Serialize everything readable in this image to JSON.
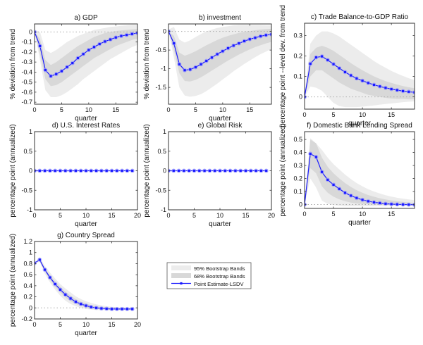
{
  "colors": {
    "band95": "#ececec",
    "band68": "#d8d8d8",
    "line": "#1a1aff",
    "marker_fill": "#1a1aff",
    "marker_halo": "#9a9aff",
    "axis": "#333333",
    "zero_line": "#aaaaaa"
  },
  "legend": {
    "items": [
      {
        "label": "95% Bootstrap Bands",
        "kind": "band95"
      },
      {
        "label": "68% Bootstrap Bands",
        "kind": "band68"
      },
      {
        "label": "Point Estimate-LSDV",
        "kind": "line"
      }
    ]
  },
  "chart_data": [
    {
      "id": "a",
      "type": "line",
      "title": "a) GDP",
      "xlabel": "quarter",
      "ylabel": "% deviation from trend",
      "xlim": [
        0,
        19
      ],
      "ylim": [
        -0.72,
        0.08
      ],
      "xticks": [
        0,
        5,
        10,
        15
      ],
      "yticks": [
        0,
        -0.1,
        -0.2,
        -0.3,
        -0.4,
        -0.5,
        -0.6,
        -0.7
      ],
      "ytick_labels": [
        "0",
        "-0.1",
        "-0.2",
        "-0.3",
        "-0.4",
        "-0.5",
        "-0.6",
        "-0.7"
      ],
      "x": [
        0,
        1,
        2,
        3,
        4,
        5,
        6,
        7,
        8,
        9,
        10,
        11,
        12,
        13,
        14,
        15,
        16,
        17,
        18,
        19
      ],
      "values": [
        0,
        -0.14,
        -0.38,
        -0.44,
        -0.42,
        -0.39,
        -0.35,
        -0.31,
        -0.26,
        -0.22,
        -0.18,
        -0.15,
        -0.12,
        -0.095,
        -0.075,
        -0.055,
        -0.04,
        -0.03,
        -0.02,
        -0.01
      ],
      "band68": {
        "lower": [
          0,
          -0.22,
          -0.47,
          -0.54,
          -0.53,
          -0.5,
          -0.46,
          -0.42,
          -0.38,
          -0.34,
          -0.3,
          -0.26,
          -0.23,
          -0.2,
          -0.17,
          -0.14,
          -0.12,
          -0.1,
          -0.08,
          -0.065
        ],
        "upper": [
          0,
          -0.07,
          -0.28,
          -0.33,
          -0.3,
          -0.26,
          -0.22,
          -0.18,
          -0.14,
          -0.11,
          -0.08,
          -0.05,
          -0.03,
          -0.01,
          0,
          0.01,
          0.015,
          0.02,
          0.025,
          0.03
        ]
      },
      "band95": {
        "lower": [
          0,
          -0.28,
          -0.58,
          -0.65,
          -0.65,
          -0.63,
          -0.6,
          -0.56,
          -0.52,
          -0.47,
          -0.43,
          -0.39,
          -0.35,
          -0.31,
          -0.27,
          -0.24,
          -0.21,
          -0.18,
          -0.15,
          -0.13
        ],
        "upper": [
          0.02,
          0.0,
          -0.18,
          -0.21,
          -0.18,
          -0.14,
          -0.1,
          -0.07,
          -0.04,
          -0.02,
          0.0,
          0.02,
          0.03,
          0.04,
          0.05,
          0.055,
          0.06,
          0.065,
          0.07,
          0.07
        ]
      },
      "zero_line": true
    },
    {
      "id": "b",
      "type": "line",
      "title": "b) investment",
      "xlabel": "quarter",
      "ylabel": "% deviation from trend",
      "xlim": [
        0,
        19
      ],
      "ylim": [
        -1.95,
        0.2
      ],
      "xticks": [
        0,
        5,
        10,
        15
      ],
      "yticks": [
        0,
        -0.5,
        -1,
        -1.5
      ],
      "ytick_labels": [
        "0",
        "-0.5",
        "-1",
        "-1.5"
      ],
      "x": [
        0,
        1,
        2,
        3,
        4,
        5,
        6,
        7,
        8,
        9,
        10,
        11,
        12,
        13,
        14,
        15,
        16,
        17,
        18,
        19
      ],
      "values": [
        0,
        -0.32,
        -0.88,
        -1.04,
        -1.02,
        -0.96,
        -0.88,
        -0.79,
        -0.7,
        -0.61,
        -0.53,
        -0.45,
        -0.38,
        -0.32,
        -0.26,
        -0.21,
        -0.17,
        -0.13,
        -0.1,
        -0.08
      ],
      "band68": {
        "lower": [
          0,
          -0.5,
          -1.12,
          -1.33,
          -1.34,
          -1.3,
          -1.23,
          -1.14,
          -1.05,
          -0.96,
          -0.87,
          -0.78,
          -0.7,
          -0.62,
          -0.55,
          -0.48,
          -0.42,
          -0.37,
          -0.32,
          -0.28
        ],
        "upper": [
          0,
          -0.12,
          -0.57,
          -0.65,
          -0.6,
          -0.53,
          -0.45,
          -0.37,
          -0.3,
          -0.23,
          -0.17,
          -0.12,
          -0.08,
          -0.04,
          -0.01,
          0.01,
          0.03,
          0.05,
          0.06,
          0.07
        ]
      },
      "band95": {
        "lower": [
          0,
          -0.7,
          -1.5,
          -1.72,
          -1.75,
          -1.73,
          -1.68,
          -1.6,
          -1.5,
          -1.4,
          -1.29,
          -1.18,
          -1.07,
          -0.97,
          -0.87,
          -0.78,
          -0.69,
          -0.61,
          -0.54,
          -0.47
        ],
        "upper": [
          0.05,
          0.12,
          -0.22,
          -0.3,
          -0.24,
          -0.15,
          -0.07,
          0.0,
          0.05,
          0.09,
          0.12,
          0.14,
          0.16,
          0.17,
          0.17,
          0.17,
          0.17,
          0.17,
          0.16,
          0.16
        ]
      },
      "zero_line": true
    },
    {
      "id": "c",
      "type": "line",
      "title": "c) Trade Balance-to-GDP Ratio",
      "xlabel": "quarter",
      "ylabel": "percentage point --level dev. from trend",
      "xlim": [
        0,
        19
      ],
      "ylim": [
        -0.06,
        0.36
      ],
      "xticks": [
        0,
        5,
        10,
        15
      ],
      "yticks": [
        0,
        0.1,
        0.2,
        0.3
      ],
      "ytick_labels": [
        "0",
        "0.1",
        "0.2",
        "0.3"
      ],
      "x": [
        0,
        1,
        2,
        3,
        4,
        5,
        6,
        7,
        8,
        9,
        10,
        11,
        12,
        13,
        14,
        15,
        16,
        17,
        18,
        19
      ],
      "values": [
        0,
        0.162,
        0.193,
        0.198,
        0.18,
        0.16,
        0.14,
        0.121,
        0.105,
        0.09,
        0.079,
        0.068,
        0.059,
        0.051,
        0.044,
        0.038,
        0.033,
        0.028,
        0.025,
        0.022
      ],
      "band68": {
        "lower": [
          0,
          0.1,
          0.13,
          0.13,
          0.11,
          0.09,
          0.07,
          0.055,
          0.04,
          0.03,
          0.02,
          0.01,
          0.005,
          0.0,
          -0.005,
          -0.008,
          -0.01,
          -0.01,
          -0.012,
          -0.012
        ],
        "upper": [
          0,
          0.21,
          0.24,
          0.25,
          0.24,
          0.225,
          0.205,
          0.185,
          0.165,
          0.147,
          0.13,
          0.115,
          0.1,
          0.088,
          0.077,
          0.068,
          0.06,
          0.053,
          0.047,
          0.042
        ]
      },
      "band95": {
        "lower": [
          0,
          0.05,
          0.045,
          0.03,
          0.0,
          -0.03,
          -0.045,
          -0.05,
          -0.05,
          -0.05,
          -0.048,
          -0.045,
          -0.042,
          -0.038,
          -0.035,
          -0.032,
          -0.029,
          -0.026,
          -0.024,
          -0.022
        ],
        "upper": [
          0,
          0.26,
          0.3,
          0.32,
          0.32,
          0.31,
          0.295,
          0.275,
          0.255,
          0.235,
          0.215,
          0.195,
          0.175,
          0.158,
          0.142,
          0.127,
          0.114,
          0.102,
          0.091,
          0.082
        ]
      },
      "zero_line": true
    },
    {
      "id": "d",
      "type": "line",
      "title": "d) U.S. Interest Rates",
      "xlabel": "quarter",
      "ylabel": "percentage point (annualized)",
      "xlim": [
        0,
        20
      ],
      "ylim": [
        -1,
        1
      ],
      "xticks": [
        0,
        5,
        10,
        15,
        20
      ],
      "yticks": [
        1,
        0.5,
        0,
        -0.5,
        -1
      ],
      "ytick_labels": [
        "1",
        "0.5",
        "0",
        "-0.5",
        "-1"
      ],
      "x": [
        0,
        1,
        2,
        3,
        4,
        5,
        6,
        7,
        8,
        9,
        10,
        11,
        12,
        13,
        14,
        15,
        16,
        17,
        18,
        19
      ],
      "values": [
        0,
        0,
        0,
        0,
        0,
        0,
        0,
        0,
        0,
        0,
        0,
        0,
        0,
        0,
        0,
        0,
        0,
        0,
        0,
        0
      ],
      "zero_line": false
    },
    {
      "id": "e",
      "type": "line",
      "title": "e) Global Risk",
      "xlabel": "quarter",
      "ylabel": "percentage point (annualized)",
      "xlim": [
        0,
        20
      ],
      "ylim": [
        -1,
        1
      ],
      "xticks": [
        0,
        5,
        10,
        15,
        20
      ],
      "yticks": [
        1,
        0.5,
        0,
        -0.5,
        -1
      ],
      "ytick_labels": [
        "1",
        "0.5",
        "0",
        "-0.5",
        "-1"
      ],
      "x": [
        0,
        1,
        2,
        3,
        4,
        5,
        6,
        7,
        8,
        9,
        10,
        11,
        12,
        13,
        14,
        15,
        16,
        17,
        18,
        19
      ],
      "values": [
        0,
        0,
        0,
        0,
        0,
        0,
        0,
        0,
        0,
        0,
        0,
        0,
        0,
        0,
        0,
        0,
        0,
        0,
        0,
        0
      ],
      "zero_line": false
    },
    {
      "id": "f",
      "type": "line",
      "title": "f) Domestic Bank Lending Spread",
      "xlabel": "quarter",
      "ylabel": "percentage point (annualized)",
      "xlim": [
        0,
        19
      ],
      "ylim": [
        -0.03,
        0.56
      ],
      "xticks": [
        0,
        5,
        10,
        15
      ],
      "yticks": [
        0,
        0.1,
        0.2,
        0.3,
        0.4,
        0.5
      ],
      "ytick_labels": [
        "0",
        "0.1",
        "0.2",
        "0.3",
        "0.4",
        "0.5"
      ],
      "x": [
        0,
        1,
        2,
        3,
        4,
        5,
        6,
        7,
        8,
        9,
        10,
        11,
        12,
        13,
        14,
        15,
        16,
        17,
        18,
        19
      ],
      "values": [
        0,
        0.39,
        0.365,
        0.25,
        0.19,
        0.152,
        0.12,
        0.09,
        0.068,
        0.05,
        0.036,
        0.025,
        0.017,
        0.011,
        0.006,
        0.003,
        0.001,
        0.0,
        -0.001,
        -0.002
      ],
      "band68": {
        "lower": [
          0,
          0.28,
          0.24,
          0.14,
          0.09,
          0.06,
          0.04,
          0.025,
          0.015,
          0.008,
          0.004,
          0.002,
          0.0,
          -0.002,
          -0.003,
          -0.004,
          -0.005,
          -0.005,
          -0.005,
          -0.005
        ],
        "upper": [
          0,
          0.5,
          0.47,
          0.36,
          0.29,
          0.24,
          0.2,
          0.165,
          0.135,
          0.11,
          0.09,
          0.073,
          0.06,
          0.048,
          0.039,
          0.031,
          0.025,
          0.02,
          0.016,
          0.013
        ]
      },
      "band95": {
        "lower": [
          0,
          0.2,
          0.13,
          0.03,
          0.005,
          -0.005,
          -0.01,
          -0.012,
          -0.013,
          -0.013,
          -0.013,
          -0.012,
          -0.012,
          -0.011,
          -0.011,
          -0.01,
          -0.01,
          -0.01,
          -0.01,
          -0.01
        ],
        "upper": [
          0,
          0.51,
          0.47,
          0.42,
          0.36,
          0.31,
          0.27,
          0.23,
          0.195,
          0.165,
          0.14,
          0.118,
          0.1,
          0.085,
          0.072,
          0.061,
          0.052,
          0.045,
          0.039,
          0.034
        ]
      },
      "zero_line": true
    },
    {
      "id": "g",
      "type": "line",
      "title": "g) Country Spread",
      "xlabel": "quarter",
      "ylabel": "percentage point (annualized)",
      "xlim": [
        0,
        20
      ],
      "ylim": [
        -0.2,
        1.2
      ],
      "xticks": [
        0,
        5,
        10,
        15,
        20
      ],
      "yticks": [
        1.2,
        1,
        0.8,
        0.6,
        0.4,
        0.2,
        0,
        -0.2
      ],
      "ytick_labels": [
        "1.2",
        "1",
        "0.8",
        "0.6",
        "0.4",
        "0.2",
        "0",
        "-0.2"
      ],
      "x": [
        0,
        1,
        2,
        3,
        4,
        5,
        6,
        7,
        8,
        9,
        10,
        11,
        12,
        13,
        14,
        15,
        16,
        17,
        18,
        19
      ],
      "values": [
        0.81,
        0.87,
        0.69,
        0.55,
        0.43,
        0.33,
        0.24,
        0.17,
        0.11,
        0.07,
        0.04,
        0.015,
        0.0,
        -0.01,
        -0.015,
        -0.02,
        -0.02,
        -0.02,
        -0.02,
        -0.02
      ],
      "band68": {
        "lower": [
          0.81,
          0.85,
          0.66,
          0.51,
          0.38,
          0.28,
          0.19,
          0.12,
          0.07,
          0.035,
          0.01,
          -0.01,
          -0.02,
          -0.025,
          -0.03,
          -0.03,
          -0.03,
          -0.03,
          -0.03,
          -0.03
        ],
        "upper": [
          0.81,
          0.89,
          0.72,
          0.59,
          0.48,
          0.38,
          0.29,
          0.22,
          0.16,
          0.11,
          0.08,
          0.05,
          0.03,
          0.015,
          0.005,
          0.0,
          -0.005,
          -0.008,
          -0.01,
          -0.01
        ]
      },
      "band95": {
        "lower": [
          0.81,
          0.83,
          0.62,
          0.46,
          0.33,
          0.22,
          0.13,
          0.07,
          0.03,
          0.0,
          -0.02,
          -0.03,
          -0.04,
          -0.04,
          -0.045,
          -0.045,
          -0.045,
          -0.045,
          -0.045,
          -0.045
        ],
        "upper": [
          0.81,
          0.92,
          0.76,
          0.64,
          0.53,
          0.43,
          0.35,
          0.28,
          0.21,
          0.16,
          0.12,
          0.09,
          0.065,
          0.045,
          0.03,
          0.02,
          0.012,
          0.007,
          0.003,
          0.0
        ]
      },
      "zero_line": true
    }
  ]
}
